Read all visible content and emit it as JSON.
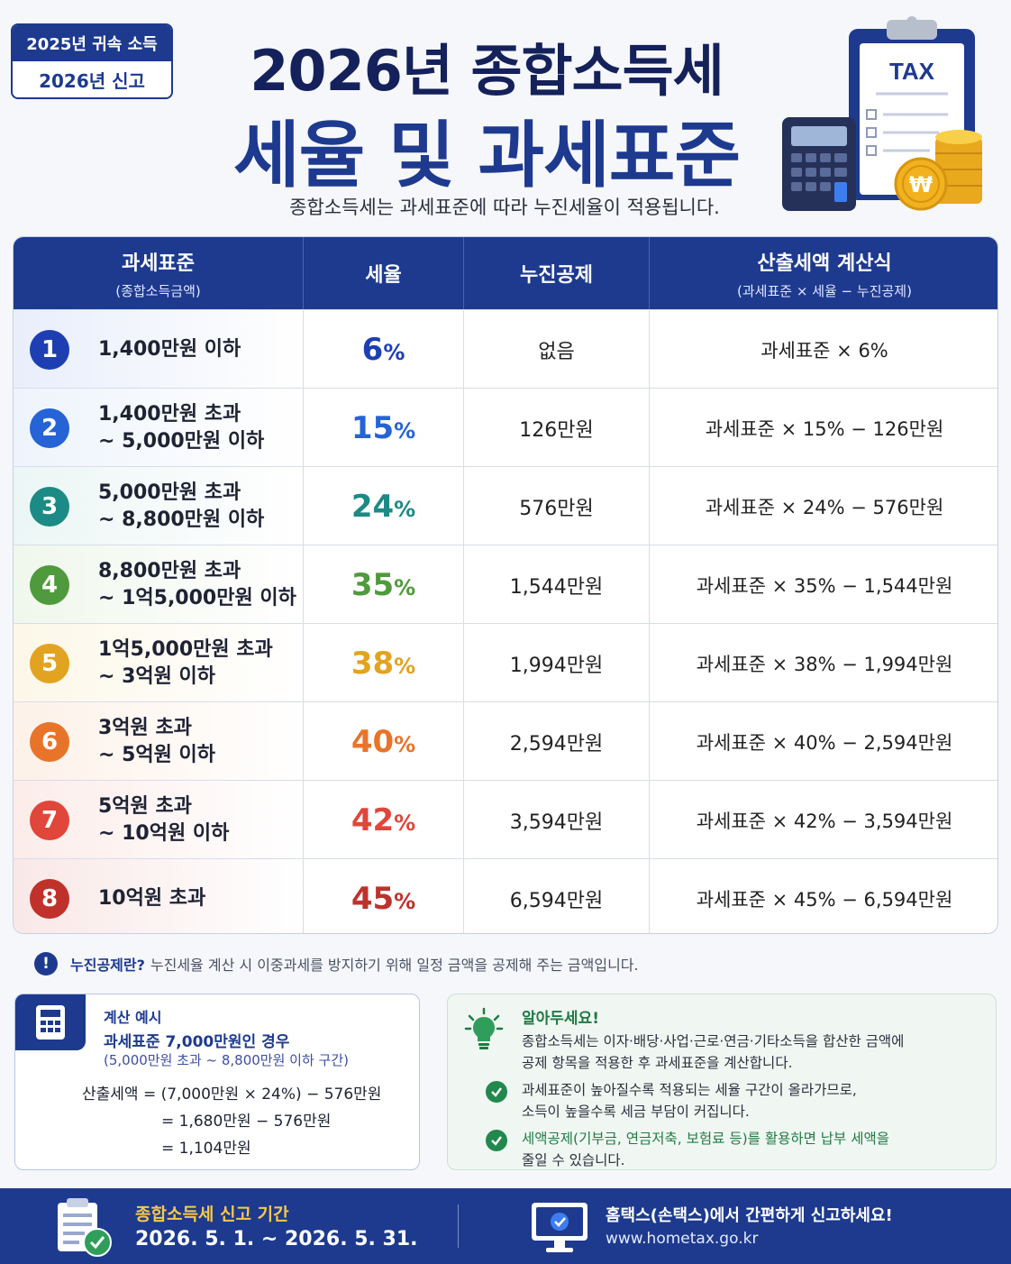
{
  "badge": {
    "top": "2025년 귀속 소득",
    "bottom": "2026년 신고"
  },
  "header": {
    "title_line1": "2026년 종합소득세",
    "title_line2": "세율 및 과세표준",
    "subtitle": "종합소득세는 과세표준에 따라 누진세율이 적용됩니다.",
    "illustration": {
      "sheet_label": "TAX",
      "coin_symbol": "₩"
    }
  },
  "table": {
    "columns": [
      {
        "label": "과세표준",
        "sub": "(종합소득금액)"
      },
      {
        "label": "세율",
        "sub": ""
      },
      {
        "label": "누진공제",
        "sub": ""
      },
      {
        "label": "산출세액 계산식",
        "sub": "(과세표준 × 세율 − 누진공제)"
      }
    ],
    "rows": [
      {
        "no": "1",
        "range1": "1,400만원 이하",
        "range2": "",
        "rate": "6",
        "deduction": "없음",
        "formula": "과세표준 × 6%",
        "color": "#1d3fb3",
        "bg": "#e9eefb"
      },
      {
        "no": "2",
        "range1": "1,400만원 초과",
        "range2": "~ 5,000만원 이하",
        "rate": "15",
        "deduction": "126만원",
        "formula": "과세표준 × 15% − 126만원",
        "color": "#2563d6",
        "bg": "#eef4fc"
      },
      {
        "no": "3",
        "range1": "5,000만원 초과",
        "range2": "~ 8,800만원 이하",
        "rate": "24",
        "deduction": "576만원",
        "formula": "과세표준 × 24% − 576만원",
        "color": "#1c8a85",
        "bg": "#ecf6f5"
      },
      {
        "no": "4",
        "range1": "8,800만원 초과",
        "range2": "~ 1억5,000만원 이하",
        "rate": "35",
        "deduction": "1,544만원",
        "formula": "과세표준 × 35% − 1,544만원",
        "color": "#4f9a3c",
        "bg": "#f0f7ec"
      },
      {
        "no": "5",
        "range1": "1억5,000만원 초과",
        "range2": "~ 3억원 이하",
        "rate": "38",
        "deduction": "1,994만원",
        "formula": "과세표준 × 38% − 1,994만원",
        "color": "#e2a320",
        "bg": "#fcf7e8"
      },
      {
        "no": "6",
        "range1": "3억원 초과",
        "range2": "~ 5억원 이하",
        "rate": "40",
        "deduction": "2,594만원",
        "formula": "과세표준 × 40% − 2,594만원",
        "color": "#e8742a",
        "bg": "#fdf1e8"
      },
      {
        "no": "7",
        "range1": "5억원 초과",
        "range2": "~ 10억원 이하",
        "rate": "42",
        "deduction": "3,594만원",
        "formula": "과세표준 × 42% − 3,594만원",
        "color": "#e0463a",
        "bg": "#fcecea"
      },
      {
        "no": "8",
        "range1": "10억원 초과",
        "range2": "",
        "rate": "45",
        "deduction": "6,594만원",
        "formula": "과세표준 × 45% − 6,594만원",
        "color": "#c0312b",
        "bg": "#f9e8e7"
      }
    ]
  },
  "note": {
    "icon": "!",
    "bold": "누진공제란?",
    "text": "누진세율 계산 시 이중과세를 방지하기 위해 일정 금액을 공제해 주는 금액입니다."
  },
  "example": {
    "title": "계산 예시",
    "line1": "과세표준 7,000만원인 경우",
    "line2": "(5,000만원 초과 ~ 8,800만원 이하 구간)",
    "calc1": "산출세액 = (7,000만원 × 24%) − 576만원",
    "calc2": "= 1,680만원 − 576만원",
    "calc3": "= 1,104만원"
  },
  "tips": {
    "title": "알아두세요!",
    "text1a": "종합소득세는 이자·배당·사업·근로·연금·기타소득을 합산한 금액에",
    "text1b": "공제 항목을 적용한 후 과세표준을 계산합니다.",
    "text2a": "과세표준이 높아질수록 적용되는 세율 구간이 올라가므로,",
    "text2b": "소득이 높을수록 세금 부담이 커집니다.",
    "text3a": "세액공제(기부금, 연금저축, 보험료 등)를 활용하면 납부 세액을",
    "text3b": "줄일 수 있습니다."
  },
  "footer": {
    "period_label": "종합소득세 신고 기간",
    "period_value": "2026. 5. 1. ~ 2026. 5. 31.",
    "site_label": "홈택스(손택스)에서 간편하게 신고하세요!",
    "site_url": "www.hometax.go.kr"
  },
  "colors": {
    "primary": "#1d3a8f",
    "title": "#14215a",
    "accent_gold": "#f7c948",
    "tip_green": "#1f7a44"
  }
}
